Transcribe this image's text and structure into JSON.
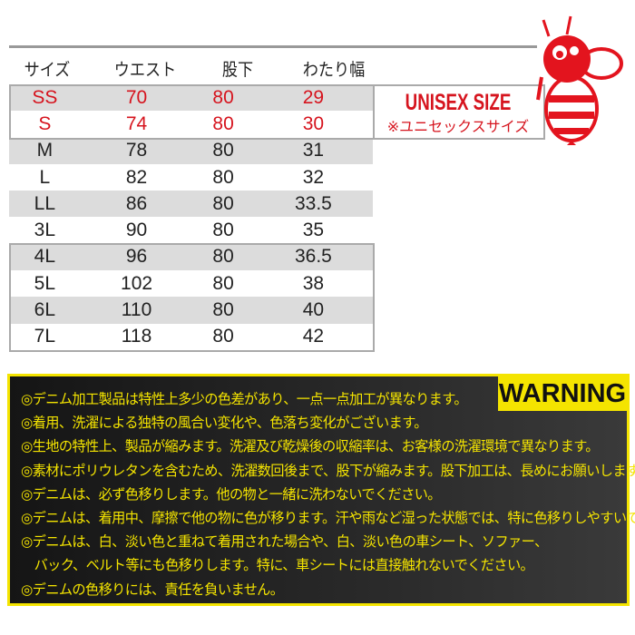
{
  "table": {
    "headers": [
      "サイズ",
      "ウエスト",
      "股下",
      "わたり幅"
    ],
    "rows": [
      [
        "SS",
        "70",
        "80",
        "29"
      ],
      [
        "S",
        "74",
        "80",
        "30"
      ],
      [
        "M",
        "78",
        "80",
        "31"
      ],
      [
        "L",
        "82",
        "80",
        "32"
      ],
      [
        "LL",
        "86",
        "80",
        "33.5"
      ],
      [
        "3L",
        "90",
        "80",
        "35"
      ],
      [
        "4L",
        "96",
        "80",
        "36.5"
      ],
      [
        "5L",
        "102",
        "80",
        "38"
      ],
      [
        "6L",
        "110",
        "80",
        "40"
      ],
      [
        "7L",
        "118",
        "80",
        "42"
      ]
    ]
  },
  "unisex": {
    "title": "UNISEX SIZE",
    "subtitle": "※ユニセックスサイズ"
  },
  "colors": {
    "accent_red": "#d6141e",
    "warning_yellow": "#f4e400",
    "row_gray": "#dcdcdc"
  },
  "warning": {
    "label": "WARNING",
    "lines": [
      "◎デニム加工製品は特性上多少の色差があり、一点一点加工が異なります。",
      "◎着用、洗濯による独特の風合い変化や、色落ち変化がございます。",
      "◎生地の特性上、製品が縮みます。洗濯及び乾燥後の収縮率は、お客様の洗濯環境で異なります。",
      "◎素材にポリウレタンを含むため、洗濯数回後まで、股下が縮みます。股下加工は、長めにお願いします。",
      "◎デニムは、必ず色移りします。他の物と一緒に洗わないでください。",
      "◎デニムは、着用中、摩擦で他の物に色が移ります。汗や雨など湿った状態では、特に色移りしやすいです。",
      "◎デニムは、白、淡い色と重ねて着用された場合や、白、淡い色の車シート、ソファー、",
      "　バック、ベルト等にも色移りします。特に、車シートには直接触れないでください。",
      "◎デニムの色移りには、責任を負いません。"
    ]
  }
}
